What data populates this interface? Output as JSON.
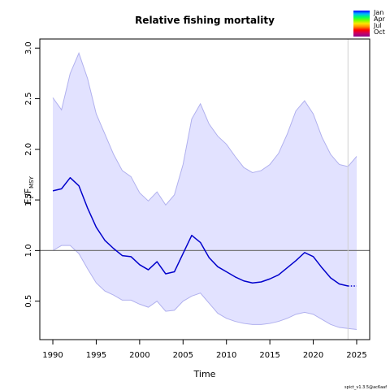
{
  "chart_data": {
    "type": "line",
    "title": "Relative fishing mortality",
    "xlabel": "Time",
    "ylabel_main": "F",
    "ylabel_sub1": "t",
    "ylabel_sep": "/F",
    "ylabel_sub2": "MSY",
    "xlim": [
      1988.5,
      2026.5
    ],
    "ylim": [
      0.12,
      3.09
    ],
    "x_ticks": [
      1990,
      1995,
      2000,
      2005,
      2010,
      2015,
      2020,
      2025
    ],
    "y_ticks": [
      0.5,
      1.0,
      1.5,
      2.0,
      2.5,
      3.0
    ],
    "y_tick_labels": [
      "0.5",
      "1.0",
      "1.5",
      "2.0",
      "2.5",
      "3.0"
    ],
    "reference_line": 1.0,
    "forecast_start": 2024,
    "grid": false,
    "series": [
      {
        "role": "estimate",
        "color": "#0000cc",
        "x": [
          1990,
          1991,
          1992,
          1993,
          1994,
          1995,
          1996,
          1997,
          1998,
          1999,
          2000,
          2001,
          2002,
          2003,
          2004,
          2005,
          2006,
          2007,
          2008,
          2009,
          2010,
          2011,
          2012,
          2013,
          2014,
          2015,
          2016,
          2017,
          2018,
          2019,
          2020,
          2021,
          2022,
          2023,
          2024,
          2025
        ],
        "y": [
          1.59,
          1.61,
          1.72,
          1.64,
          1.42,
          1.23,
          1.1,
          1.02,
          0.95,
          0.94,
          0.86,
          0.81,
          0.89,
          0.77,
          0.79,
          0.97,
          1.15,
          1.08,
          0.93,
          0.84,
          0.79,
          0.74,
          0.7,
          0.68,
          0.69,
          0.72,
          0.76,
          0.83,
          0.9,
          0.98,
          0.94,
          0.83,
          0.73,
          0.67,
          0.65,
          0.65
        ]
      },
      {
        "role": "upper",
        "color": "#b0b0ee",
        "x": [
          1990,
          1991,
          1992,
          1993,
          1994,
          1995,
          1996,
          1997,
          1998,
          1999,
          2000,
          2001,
          2002,
          2003,
          2004,
          2005,
          2006,
          2007,
          2008,
          2009,
          2010,
          2011,
          2012,
          2013,
          2014,
          2015,
          2016,
          2017,
          2018,
          2019,
          2020,
          2021,
          2022,
          2023,
          2024,
          2025
        ],
        "y": [
          2.51,
          2.39,
          2.75,
          2.95,
          2.7,
          2.35,
          2.15,
          1.95,
          1.79,
          1.73,
          1.57,
          1.49,
          1.58,
          1.45,
          1.55,
          1.85,
          2.3,
          2.45,
          2.25,
          2.13,
          2.05,
          1.93,
          1.82,
          1.77,
          1.79,
          1.85,
          1.96,
          2.15,
          2.38,
          2.48,
          2.35,
          2.12,
          1.95,
          1.85,
          1.83,
          1.93
        ]
      },
      {
        "role": "lower",
        "color": "#b0b0ee",
        "x": [
          1990,
          1991,
          1992,
          1993,
          1994,
          1995,
          1996,
          1997,
          1998,
          1999,
          2000,
          2001,
          2002,
          2003,
          2004,
          2005,
          2006,
          2007,
          2008,
          2009,
          2010,
          2011,
          2012,
          2013,
          2014,
          2015,
          2016,
          2017,
          2018,
          2019,
          2020,
          2021,
          2022,
          2023,
          2024,
          2025
        ],
        "y": [
          1.0,
          1.05,
          1.05,
          0.97,
          0.82,
          0.68,
          0.6,
          0.56,
          0.51,
          0.51,
          0.47,
          0.44,
          0.5,
          0.4,
          0.41,
          0.5,
          0.55,
          0.58,
          0.48,
          0.38,
          0.33,
          0.3,
          0.28,
          0.27,
          0.27,
          0.28,
          0.3,
          0.33,
          0.37,
          0.39,
          0.37,
          0.32,
          0.27,
          0.24,
          0.23,
          0.22
        ]
      }
    ],
    "legend": {
      "position": "top-right",
      "entries": [
        "Jan",
        "Apr",
        "Jul",
        "Oct"
      ],
      "gradient_colors": [
        "#0000ff",
        "#00b4ff",
        "#00ff64",
        "#78ff00",
        "#ffe600",
        "#ff8c00",
        "#ff0000",
        "#c80064",
        "#8c008c"
      ]
    },
    "annotation": "spict_v1.3.5@ac6aaf"
  },
  "style": {
    "band_fill": "#e2e2ff",
    "band_edge": "#b0b0ee",
    "estimate_color": "#0000cc",
    "reference_color": "#777777",
    "forecast_line_color": "#d0d0d0"
  }
}
